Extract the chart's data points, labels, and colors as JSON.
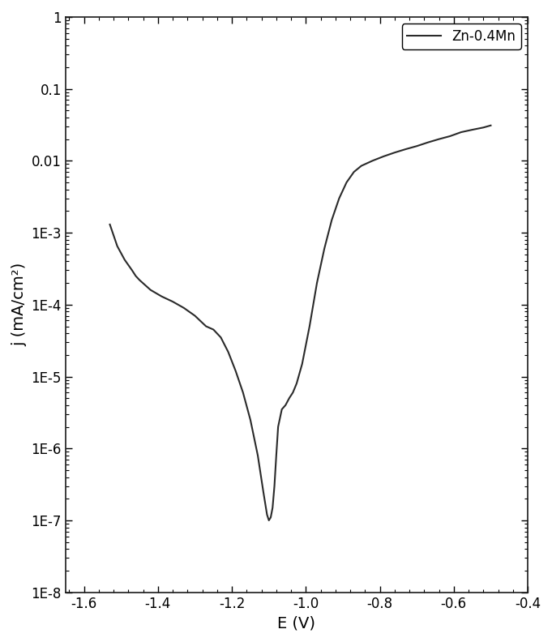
{
  "title": "",
  "xlabel": "E (V)",
  "ylabel": "j (mA/cm²)",
  "legend_label": "Zn-0.4Mn",
  "line_color": "#2a2a2a",
  "line_width": 1.5,
  "xlim": [
    -1.65,
    -0.4
  ],
  "ylim_log": [
    -8,
    0
  ],
  "background_color": "#ffffff",
  "xticks": [
    -1.6,
    -1.4,
    -1.2,
    -1.0,
    -0.8,
    -0.6,
    -0.4
  ],
  "ytick_labels": [
    "1E-8",
    "1E-7",
    "1E-6",
    "1E-5",
    "1E-4",
    "1E-3",
    "0.01",
    "0.1",
    "1"
  ],
  "ytick_values": [
    1e-08,
    1e-07,
    1e-06,
    1e-05,
    0.0001,
    0.001,
    0.01,
    0.1,
    1
  ],
  "curve_E": [
    -1.53,
    -1.51,
    -1.49,
    -1.47,
    -1.46,
    -1.45,
    -1.42,
    -1.39,
    -1.36,
    -1.33,
    -1.3,
    -1.27,
    -1.25,
    -1.23,
    -1.21,
    -1.19,
    -1.17,
    -1.15,
    -1.13,
    -1.115,
    -1.105,
    -1.1,
    -1.095,
    -1.09,
    -1.085,
    -1.08,
    -1.075,
    -1.065,
    -1.055,
    -1.045,
    -1.035,
    -1.025,
    -1.01,
    -0.99,
    -0.97,
    -0.95,
    -0.93,
    -0.91,
    -0.89,
    -0.87,
    -0.85,
    -0.82,
    -0.79,
    -0.76,
    -0.73,
    -0.7,
    -0.67,
    -0.64,
    -0.61,
    -0.58,
    -0.55,
    -0.52,
    -0.5
  ],
  "curve_j": [
    0.0013,
    0.00065,
    0.00042,
    0.0003,
    0.00025,
    0.00022,
    0.00016,
    0.00013,
    0.00011,
    9e-05,
    7e-05,
    5e-05,
    4.5e-05,
    3.5e-05,
    2.2e-05,
    1.2e-05,
    6e-06,
    2.5e-06,
    8e-07,
    2.5e-07,
    1.2e-07,
    1e-07,
    1.1e-07,
    1.5e-07,
    3e-07,
    8e-07,
    2e-06,
    3.5e-06,
    4e-06,
    5e-06,
    6e-06,
    8e-06,
    1.5e-05,
    5e-05,
    0.0002,
    0.0006,
    0.0015,
    0.003,
    0.005,
    0.007,
    0.0085,
    0.01,
    0.0115,
    0.013,
    0.0145,
    0.016,
    0.018,
    0.02,
    0.022,
    0.025,
    0.027,
    0.029,
    0.031
  ]
}
